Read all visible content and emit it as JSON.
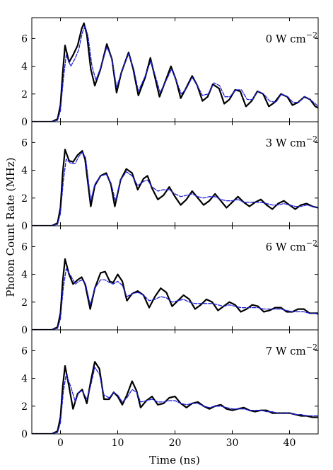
{
  "figure": {
    "ylabel": "Photon Count Rate (MHz)",
    "xlabel": "Time (ns)"
  },
  "chart_data": [
    {
      "type": "line",
      "panel_label": {
        "value": "0",
        "unit": "W cm",
        "exponent": "−2"
      },
      "xlim": [
        -5,
        45
      ],
      "ylim": [
        0,
        7.5
      ],
      "xticks": [
        0,
        10,
        20,
        30,
        40
      ],
      "yticks": [
        0,
        2,
        4,
        6
      ],
      "xticks_labeled": false,
      "series": [
        {
          "color": "#000000",
          "style": "solid",
          "x": [
            -5,
            -1.5,
            -0.5,
            0,
            0.4,
            0.8,
            1.5,
            2.2,
            3,
            3.7,
            4.1,
            4.6,
            5.3,
            6,
            7,
            8.1,
            9,
            9.8,
            10.6,
            11.9,
            12.7,
            13.6,
            14.8,
            15.7,
            16.4,
            17.3,
            18.4,
            19.3,
            20.2,
            21,
            21.9,
            23,
            23.9,
            24.8,
            25.7,
            26.6,
            27.7,
            28.6,
            29.5,
            30.5,
            31.4,
            32.4,
            33.4,
            34.4,
            35.4,
            36.4,
            37.4,
            38.5,
            39.6,
            40.5,
            41.5,
            42.6,
            43.6,
            44.5,
            45
          ],
          "y": [
            0,
            0,
            0.2,
            1.2,
            3.5,
            5.5,
            4.3,
            4.8,
            5.5,
            6.7,
            7.1,
            6.3,
            3.8,
            2.6,
            3.8,
            5.6,
            4.5,
            2.1,
            3.5,
            5.0,
            3.8,
            1.9,
            3.2,
            4.6,
            3.4,
            1.8,
            3.0,
            4.0,
            3.0,
            1.7,
            2.4,
            3.3,
            2.6,
            1.5,
            1.8,
            2.7,
            2.4,
            1.3,
            1.6,
            2.3,
            2.2,
            1.1,
            1.5,
            2.2,
            2.0,
            1.1,
            1.4,
            2.0,
            1.8,
            1.2,
            1.4,
            1.8,
            1.6,
            1.1,
            1.0
          ]
        },
        {
          "color": "#1f1fdf",
          "style": "dashed",
          "x": [
            -5,
            -1.5,
            -0.5,
            0,
            0.5,
            1,
            1.8,
            2.6,
            3.2,
            3.8,
            4.3,
            4.8,
            5.5,
            6.2,
            7.2,
            8.1,
            9,
            9.8,
            10.7,
            11.9,
            12.8,
            13.6,
            14.8,
            15.8,
            16.5,
            17.4,
            18.5,
            19.4,
            20.2,
            21.1,
            22,
            23,
            23.9,
            24.8,
            25.8,
            26.8,
            27.8,
            28.7,
            29.6,
            30.6,
            31.6,
            32.6,
            33.5,
            34.5,
            35.5,
            36.5,
            37.6,
            38.6,
            39.7,
            40.6,
            41.6,
            42.6,
            43.6,
            44.5,
            45
          ],
          "y": [
            0,
            0,
            0.1,
            0.8,
            3.0,
            4.8,
            4.0,
            4.6,
            5.2,
            6.4,
            6.9,
            6.2,
            4.0,
            3.0,
            4.1,
            5.4,
            4.5,
            2.5,
            3.6,
            4.9,
            3.8,
            2.2,
            3.3,
            4.4,
            3.4,
            2.1,
            3.0,
            3.8,
            3.0,
            2.0,
            2.4,
            3.2,
            2.6,
            1.9,
            2.0,
            2.8,
            2.6,
            1.8,
            1.8,
            2.3,
            2.3,
            1.6,
            1.6,
            2.2,
            2.0,
            1.5,
            1.4,
            2.0,
            1.8,
            1.4,
            1.4,
            1.8,
            1.6,
            1.3,
            1.1
          ]
        }
      ]
    },
    {
      "type": "line",
      "panel_label": {
        "value": "3",
        "unit": "W cm",
        "exponent": "−2"
      },
      "xlim": [
        -5,
        45
      ],
      "ylim": [
        0,
        7.5
      ],
      "xticks": [
        0,
        10,
        20,
        30,
        40
      ],
      "yticks": [
        0,
        2,
        4,
        6
      ],
      "xticks_labeled": false,
      "series": [
        {
          "color": "#000000",
          "style": "solid",
          "x": [
            -5,
            -1.5,
            -0.5,
            0,
            0.4,
            0.8,
            1.5,
            2.2,
            3,
            3.8,
            4.3,
            5.3,
            6,
            7,
            8,
            8.8,
            9.5,
            10.5,
            11.5,
            12.5,
            13.5,
            14.5,
            15.2,
            16,
            17,
            18,
            19,
            20,
            21,
            22,
            23,
            24,
            25,
            26,
            27,
            28,
            29,
            30,
            31,
            32,
            33,
            34,
            35,
            36,
            37,
            38,
            39,
            40,
            41,
            42,
            43,
            44,
            45
          ],
          "y": [
            0,
            0,
            0.2,
            1.3,
            3.8,
            5.5,
            4.7,
            4.6,
            5.1,
            5.4,
            4.8,
            1.4,
            2.9,
            3.6,
            3.8,
            3.0,
            1.4,
            3.3,
            4.1,
            3.8,
            2.6,
            3.4,
            3.6,
            2.7,
            1.9,
            2.2,
            2.8,
            2.1,
            1.5,
            1.9,
            2.5,
            2.0,
            1.5,
            1.8,
            2.3,
            1.8,
            1.3,
            1.7,
            2.1,
            1.7,
            1.4,
            1.7,
            1.9,
            1.5,
            1.2,
            1.6,
            1.8,
            1.5,
            1.2,
            1.5,
            1.6,
            1.4,
            1.3
          ]
        },
        {
          "color": "#1f1fdf",
          "style": "dashed",
          "x": [
            -5,
            -1.5,
            -0.5,
            0,
            0.5,
            1,
            1.8,
            2.6,
            3.2,
            3.8,
            4.4,
            5.3,
            6,
            7,
            8,
            8.8,
            9.6,
            10.5,
            11.5,
            12.5,
            13.5,
            14.5,
            15.2,
            16,
            17,
            18,
            19,
            20,
            21,
            22,
            23,
            24,
            25,
            26,
            27,
            28,
            29,
            30,
            31,
            32,
            33,
            34,
            35,
            36,
            37,
            38,
            39,
            40,
            41,
            42,
            43,
            44,
            45
          ],
          "y": [
            0,
            0,
            0.1,
            0.9,
            3.2,
            4.8,
            4.5,
            4.5,
            5.0,
            5.3,
            4.9,
            1.8,
            3.0,
            3.6,
            3.7,
            3.1,
            1.8,
            3.3,
            3.9,
            3.6,
            2.9,
            3.2,
            3.3,
            2.8,
            2.5,
            2.6,
            2.6,
            2.3,
            2.1,
            2.2,
            2.3,
            2.1,
            2.0,
            2.1,
            2.1,
            1.9,
            1.8,
            1.8,
            1.9,
            1.7,
            1.7,
            1.7,
            1.7,
            1.6,
            1.5,
            1.5,
            1.6,
            1.5,
            1.4,
            1.4,
            1.5,
            1.4,
            1.3
          ]
        }
      ]
    },
    {
      "type": "line",
      "panel_label": {
        "value": "6",
        "unit": "W cm",
        "exponent": "−2"
      },
      "xlim": [
        -5,
        45
      ],
      "ylim": [
        0,
        7.5
      ],
      "xticks": [
        0,
        10,
        20,
        30,
        40
      ],
      "yticks": [
        0,
        2,
        4,
        6
      ],
      "xticks_labeled": false,
      "series": [
        {
          "color": "#000000",
          "style": "solid",
          "x": [
            -5,
            -1.5,
            -0.5,
            0,
            0.4,
            0.8,
            1.5,
            2.2,
            3,
            3.7,
            4.3,
            5.2,
            6,
            7,
            7.8,
            8.6,
            9.2,
            10,
            10.8,
            11.6,
            12.5,
            13.5,
            14.5,
            15.5,
            16.5,
            17.5,
            18.5,
            19.5,
            20.5,
            21.5,
            22.5,
            23.5,
            24.5,
            25.5,
            26.5,
            27.5,
            28.5,
            29.5,
            30.5,
            31.5,
            32.5,
            33.5,
            34.5,
            35.5,
            36.5,
            37.5,
            38.5,
            39.5,
            40.5,
            41.5,
            42.5,
            43.5,
            44.5,
            45
          ],
          "y": [
            0,
            0,
            0.2,
            1.2,
            3.5,
            5.1,
            4.0,
            3.3,
            3.6,
            3.8,
            3.3,
            1.5,
            3.0,
            4.1,
            4.2,
            3.5,
            3.4,
            4.0,
            3.5,
            2.1,
            2.6,
            2.8,
            2.5,
            1.6,
            2.4,
            3.0,
            2.7,
            1.7,
            2.1,
            2.5,
            2.2,
            1.5,
            1.8,
            2.2,
            2.0,
            1.4,
            1.7,
            2.0,
            1.8,
            1.3,
            1.5,
            1.8,
            1.7,
            1.3,
            1.4,
            1.6,
            1.6,
            1.3,
            1.3,
            1.5,
            1.5,
            1.2,
            1.2,
            1.2
          ]
        },
        {
          "color": "#1f1fdf",
          "style": "dashed",
          "x": [
            -5,
            -1.5,
            -0.5,
            0,
            0.5,
            1,
            1.8,
            2.6,
            3.2,
            3.8,
            4.4,
            5.2,
            6,
            7,
            7.8,
            8.6,
            9.2,
            10,
            10.8,
            11.6,
            12.5,
            13.5,
            14.5,
            15.5,
            16.5,
            17.5,
            18.5,
            19.5,
            20.5,
            21.5,
            22.5,
            23.5,
            24.5,
            25.5,
            26.5,
            27.5,
            28.5,
            29.5,
            30.5,
            31.5,
            32.5,
            33.5,
            34.5,
            35.5,
            36.5,
            37.5,
            38.5,
            39.5,
            40.5,
            41.5,
            42.5,
            43.5,
            44.5,
            45
          ],
          "y": [
            0,
            0,
            0.1,
            0.8,
            3.0,
            4.4,
            3.9,
            3.3,
            3.5,
            3.6,
            3.3,
            1.8,
            3.0,
            3.6,
            3.6,
            3.4,
            3.3,
            3.5,
            3.2,
            2.4,
            2.6,
            2.7,
            2.5,
            2.1,
            2.2,
            2.4,
            2.3,
            2.0,
            2.1,
            2.2,
            2.0,
            1.9,
            1.9,
            1.9,
            1.9,
            1.8,
            1.7,
            1.8,
            1.7,
            1.6,
            1.6,
            1.6,
            1.6,
            1.5,
            1.5,
            1.5,
            1.5,
            1.4,
            1.3,
            1.3,
            1.3,
            1.2,
            1.2,
            1.1
          ]
        }
      ]
    },
    {
      "type": "line",
      "panel_label": {
        "value": "7",
        "unit": "W cm",
        "exponent": "−2"
      },
      "xlim": [
        -5,
        45
      ],
      "ylim": [
        0,
        7.5
      ],
      "xticks": [
        0,
        10,
        20,
        30,
        40
      ],
      "yticks": [
        0,
        2,
        4,
        6
      ],
      "xticks_labeled": true,
      "series": [
        {
          "color": "#000000",
          "style": "solid",
          "x": [
            -5,
            -1.5,
            -0.5,
            0,
            0.4,
            0.8,
            1.5,
            2.2,
            3,
            3.8,
            4.6,
            5.3,
            6,
            6.8,
            7.6,
            8.5,
            9.3,
            10,
            10.8,
            11.6,
            12.5,
            13.3,
            14,
            15,
            16,
            17,
            18,
            19,
            20,
            21,
            22,
            23,
            24,
            25,
            26,
            27,
            28,
            29,
            30,
            31,
            32,
            33,
            34,
            35,
            36,
            37,
            38,
            39,
            40,
            41,
            42,
            43,
            44,
            45
          ],
          "y": [
            0,
            0,
            0.2,
            1.2,
            3.4,
            4.9,
            3.4,
            1.8,
            2.9,
            3.2,
            2.2,
            3.8,
            5.2,
            4.7,
            2.5,
            2.5,
            3.0,
            2.7,
            2.1,
            2.8,
            3.8,
            3.1,
            1.9,
            2.4,
            2.7,
            2.1,
            2.2,
            2.6,
            2.7,
            2.2,
            1.9,
            2.2,
            2.3,
            2.0,
            1.8,
            2.0,
            2.1,
            1.8,
            1.7,
            1.8,
            1.9,
            1.7,
            1.6,
            1.7,
            1.7,
            1.5,
            1.5,
            1.5,
            1.5,
            1.4,
            1.3,
            1.3,
            1.2,
            1.2
          ]
        },
        {
          "color": "#1f1fdf",
          "style": "dashed",
          "x": [
            -5,
            -1.5,
            -0.5,
            0,
            0.5,
            1,
            1.8,
            2.6,
            3.2,
            3.8,
            4.6,
            5.3,
            6,
            6.8,
            7.6,
            8.5,
            9.3,
            10,
            10.8,
            11.6,
            12.5,
            13.3,
            14,
            15,
            16,
            17,
            18,
            19,
            20,
            21,
            22,
            23,
            24,
            25,
            26,
            27,
            28,
            29,
            30,
            31,
            32,
            33,
            34,
            35,
            36,
            37,
            38,
            39,
            40,
            41,
            42,
            43,
            44,
            45
          ],
          "y": [
            0,
            0,
            0.1,
            0.8,
            3.0,
            4.3,
            3.4,
            2.3,
            3.0,
            3.1,
            2.5,
            3.5,
            4.8,
            4.3,
            2.8,
            2.6,
            3.0,
            2.8,
            2.3,
            2.6,
            3.2,
            3.0,
            2.3,
            2.4,
            2.5,
            2.3,
            2.3,
            2.4,
            2.4,
            2.2,
            2.1,
            2.2,
            2.2,
            2.0,
            1.9,
            2.0,
            2.0,
            1.9,
            1.8,
            1.8,
            1.8,
            1.7,
            1.7,
            1.7,
            1.6,
            1.6,
            1.5,
            1.5,
            1.5,
            1.4,
            1.4,
            1.3,
            1.3,
            1.3
          ]
        }
      ]
    }
  ]
}
